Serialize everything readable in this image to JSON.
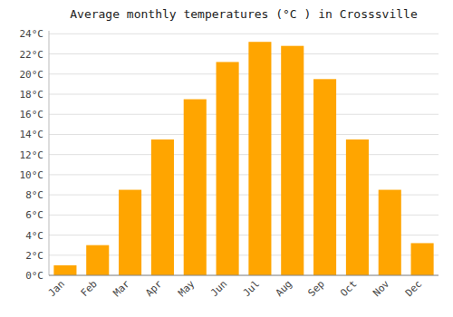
{
  "chart_data": {
    "type": "bar",
    "title": "Average monthly temperatures (°C ) in Crosssville",
    "categories": [
      "Jan",
      "Feb",
      "Mar",
      "Apr",
      "May",
      "Jun",
      "Jul",
      "Aug",
      "Sep",
      "Oct",
      "Nov",
      "Dec"
    ],
    "values": [
      1.0,
      3.0,
      8.5,
      13.5,
      17.5,
      21.2,
      23.2,
      22.8,
      19.5,
      13.5,
      8.5,
      3.2
    ],
    "color": "#FFA500",
    "ylim": [
      0,
      24.3
    ],
    "yticks": [
      {
        "value": 0,
        "label": "0°C"
      },
      {
        "value": 2,
        "label": "2°C"
      },
      {
        "value": 4,
        "label": "4°C"
      },
      {
        "value": 6,
        "label": "6°C"
      },
      {
        "value": 8,
        "label": "8°C"
      },
      {
        "value": 10,
        "label": "10°C"
      },
      {
        "value": 12,
        "label": "12°C"
      },
      {
        "value": 14,
        "label": "14°C"
      },
      {
        "value": 16,
        "label": "16°C"
      },
      {
        "value": 18,
        "label": "18°C"
      },
      {
        "value": 20,
        "label": "20°C"
      },
      {
        "value": 22,
        "label": "22°C"
      },
      {
        "value": 24,
        "label": "24°C"
      }
    ],
    "grid": true
  }
}
